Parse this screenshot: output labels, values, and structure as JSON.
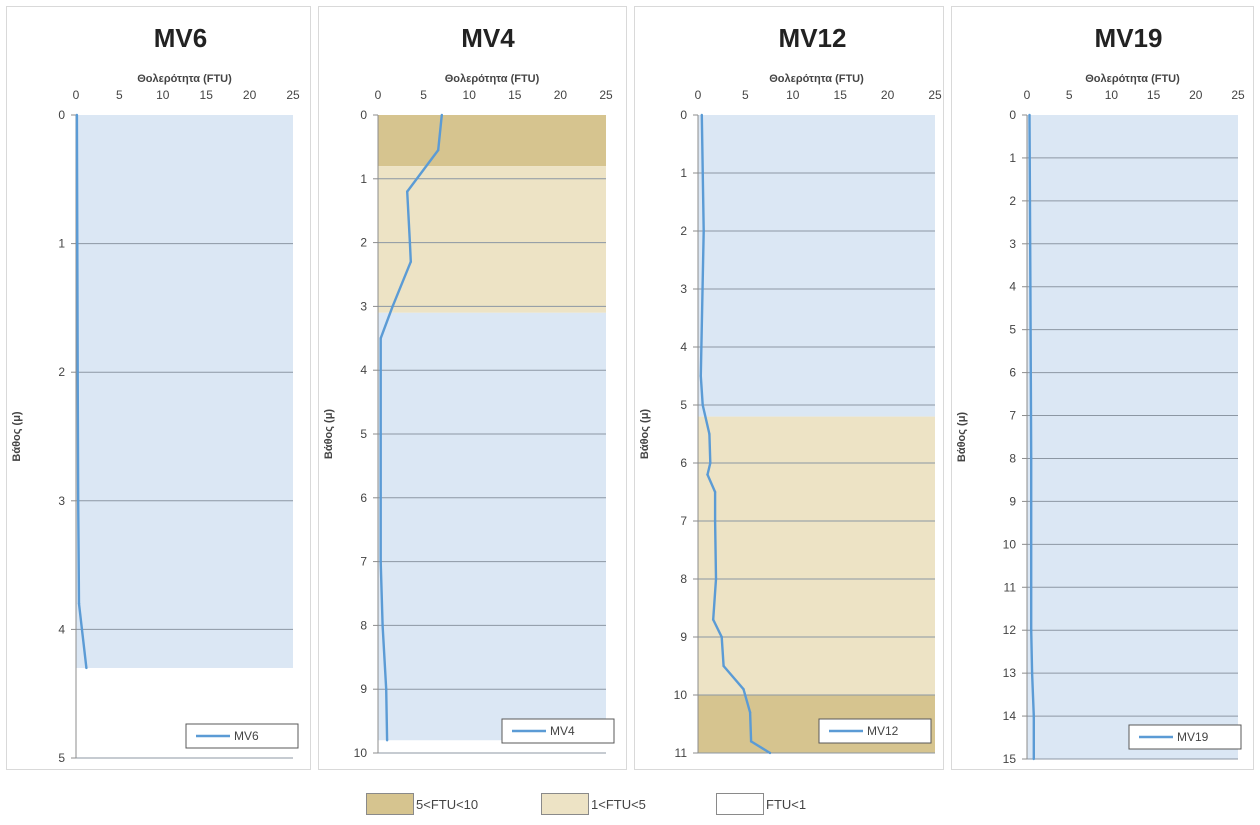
{
  "top_caption": "",
  "colors": {
    "band_high": "#d6c48f",
    "band_mid": "#ede3c5",
    "band_low": "#dbe7f4",
    "line": "#5b9bd5",
    "grid": "#8c97a3"
  },
  "legend": [
    {
      "label": "5<FTU<10",
      "color": "#d6c48f"
    },
    {
      "label": "1<FTU<5",
      "color": "#ede3c5"
    },
    {
      "label": "FTU<1",
      "color": "#ffffff"
    }
  ],
  "chart_data": [
    {
      "type": "line",
      "title": "MV6",
      "xlabel": "Θολερότητα (FTU)",
      "ylabel": "Βάθος (μ)",
      "xlim": [
        0,
        25
      ],
      "xticks": [
        0,
        5,
        10,
        15,
        20,
        25
      ],
      "ylim": [
        0,
        5
      ],
      "yticks": [
        0,
        1,
        2,
        3,
        4,
        5
      ],
      "y_inverted": true,
      "grid": true,
      "legend_position": "bottom-right",
      "bands": [
        {
          "class": "FTU<1",
          "from": 0,
          "to": 4.3
        }
      ],
      "series": [
        {
          "name": "MV6",
          "points": [
            [
              0.1,
              0
            ],
            [
              0.15,
              1.0
            ],
            [
              0.2,
              2.0
            ],
            [
              0.25,
              3.0
            ],
            [
              0.35,
              3.8
            ],
            [
              1.2,
              4.3
            ]
          ]
        }
      ]
    },
    {
      "type": "line",
      "title": "MV4",
      "xlabel": "Θολερότητα (FTU)",
      "ylabel": "Βάθος (μ)",
      "xlim": [
        0,
        25
      ],
      "xticks": [
        0,
        5,
        10,
        15,
        20,
        25
      ],
      "ylim": [
        0,
        10
      ],
      "yticks": [
        0,
        1,
        2,
        3,
        4,
        5,
        6,
        7,
        8,
        9,
        10
      ],
      "y_inverted": true,
      "grid": true,
      "legend_position": "bottom-right",
      "bands": [
        {
          "class": "5<FTU<10",
          "from": 0,
          "to": 0.8
        },
        {
          "class": "1<FTU<5",
          "from": 0.8,
          "to": 3.1
        },
        {
          "class": "FTU<1",
          "from": 3.1,
          "to": 9.8
        }
      ],
      "series": [
        {
          "name": "MV4",
          "points": [
            [
              7.0,
              0
            ],
            [
              6.6,
              0.55
            ],
            [
              3.2,
              1.2
            ],
            [
              3.5,
              2.0
            ],
            [
              3.6,
              2.3
            ],
            [
              1.6,
              3.0
            ],
            [
              0.3,
              3.5
            ],
            [
              0.3,
              5.0
            ],
            [
              0.3,
              7.0
            ],
            [
              0.5,
              8.0
            ],
            [
              0.9,
              9.0
            ],
            [
              1.0,
              9.8
            ]
          ]
        }
      ]
    },
    {
      "type": "line",
      "title": "MV12",
      "xlabel": "Θολερότητα (FTU)",
      "ylabel": "Βάθος (μ)",
      "xlim": [
        0,
        25
      ],
      "xticks": [
        0,
        5,
        10,
        15,
        20,
        25
      ],
      "ylim": [
        0,
        11
      ],
      "yticks": [
        0,
        1,
        2,
        3,
        4,
        5,
        6,
        7,
        8,
        9,
        10,
        11
      ],
      "y_inverted": true,
      "grid": true,
      "legend_position": "bottom-right",
      "bands": [
        {
          "class": "FTU<1",
          "from": 0,
          "to": 5.2
        },
        {
          "class": "1<FTU<5",
          "from": 5.2,
          "to": 10.0
        },
        {
          "class": "5<FTU<10",
          "from": 10.0,
          "to": 11
        }
      ],
      "series": [
        {
          "name": "MV12",
          "points": [
            [
              0.4,
              0
            ],
            [
              0.6,
              2.0
            ],
            [
              0.3,
              4.5
            ],
            [
              0.5,
              5.0
            ],
            [
              1.2,
              5.5
            ],
            [
              1.3,
              6.0
            ],
            [
              1.0,
              6.2
            ],
            [
              1.8,
              6.5
            ],
            [
              1.8,
              7.0
            ],
            [
              1.9,
              8.0
            ],
            [
              1.6,
              8.7
            ],
            [
              2.5,
              9.0
            ],
            [
              2.7,
              9.5
            ],
            [
              4.8,
              9.9
            ],
            [
              5.5,
              10.3
            ],
            [
              5.6,
              10.8
            ],
            [
              7.6,
              11.0
            ]
          ]
        }
      ]
    },
    {
      "type": "line",
      "title": "MV19",
      "xlabel": "Θολερότητα (FTU)",
      "ylabel": "Βάθος (μ)",
      "xlim": [
        0,
        25
      ],
      "xticks": [
        0,
        5,
        10,
        15,
        20,
        25
      ],
      "ylim": [
        0,
        15
      ],
      "yticks": [
        0,
        1,
        2,
        3,
        4,
        5,
        6,
        7,
        8,
        9,
        10,
        11,
        12,
        13,
        14,
        15
      ],
      "y_inverted": true,
      "grid": true,
      "legend_position": "bottom-right",
      "bands": [
        {
          "class": "FTU<1",
          "from": 0,
          "to": 15
        }
      ],
      "series": [
        {
          "name": "MV19",
          "points": [
            [
              0.3,
              0
            ],
            [
              0.4,
              4.0
            ],
            [
              0.5,
              8.0
            ],
            [
              0.5,
              12.0
            ],
            [
              0.6,
              13.0
            ],
            [
              0.8,
              14.0
            ],
            [
              0.8,
              15.0
            ]
          ]
        }
      ]
    }
  ]
}
